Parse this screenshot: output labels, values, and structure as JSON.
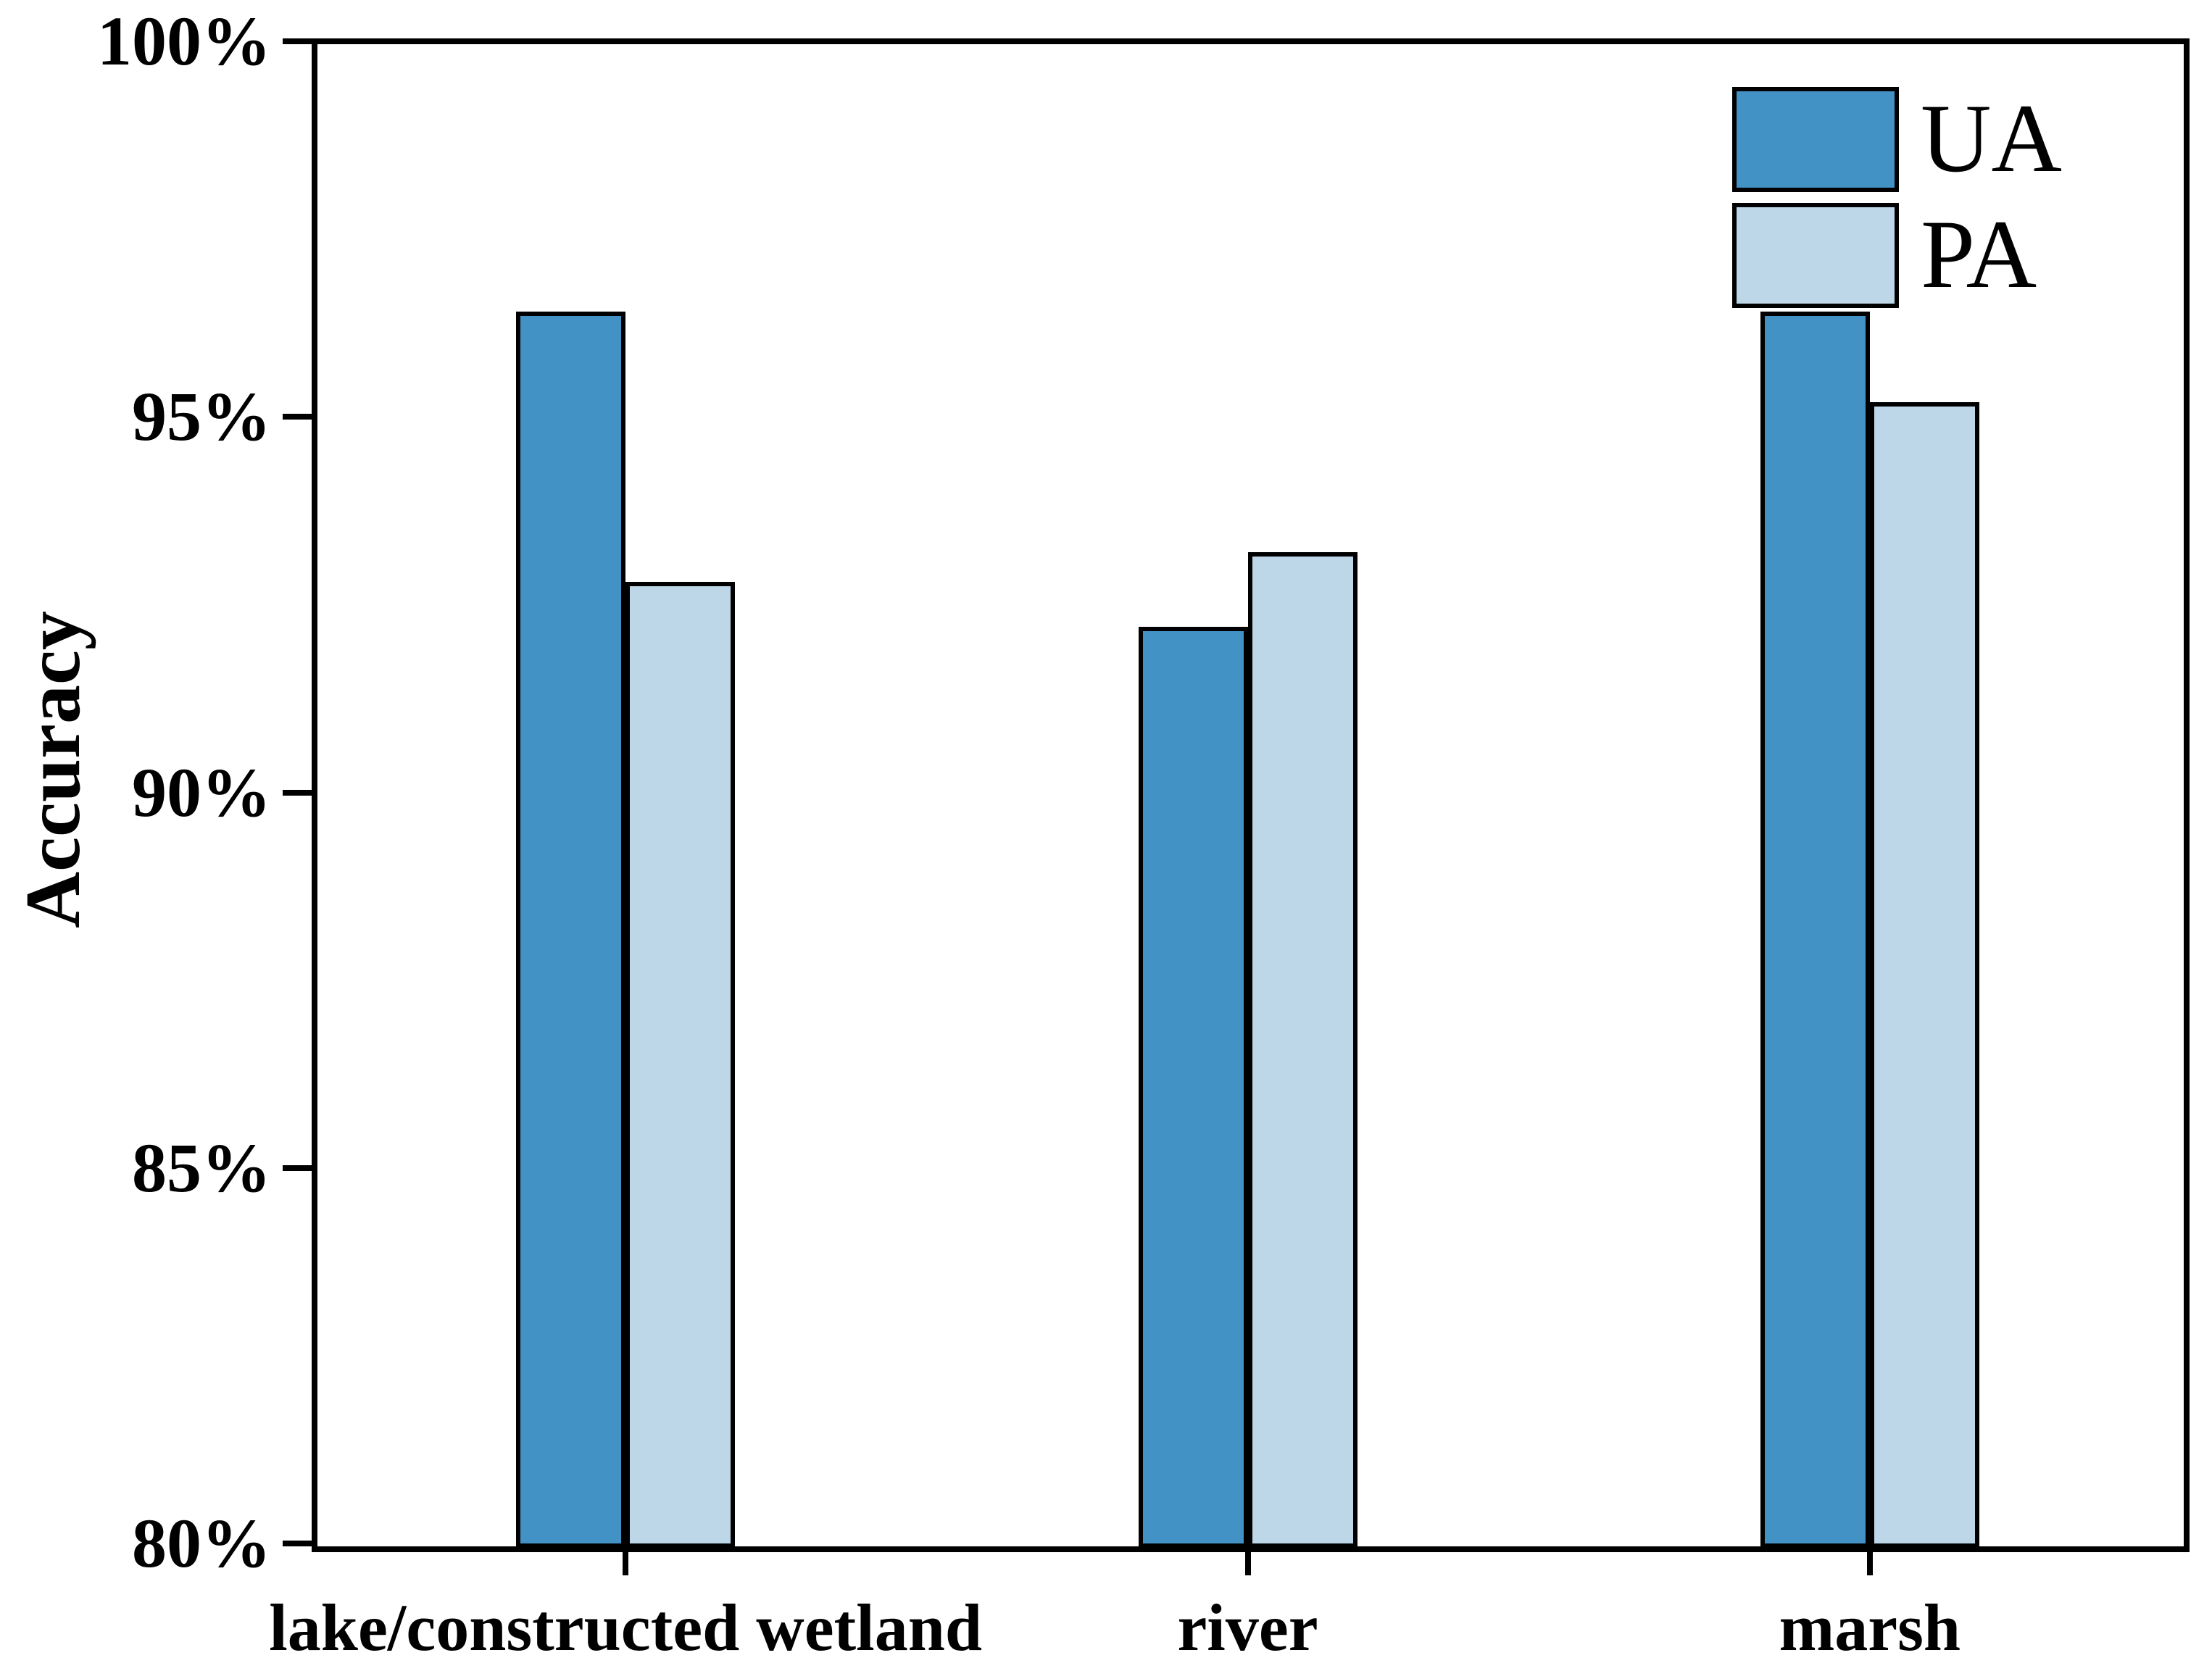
{
  "chart_data": {
    "type": "bar",
    "title": "",
    "categories": [
      "lake/constructed wetland",
      "river",
      "marsh"
    ],
    "series": [
      {
        "name": "UA",
        "color": "#4292C6",
        "values": [
          96.4,
          92.2,
          96.4
        ]
      },
      {
        "name": "PA",
        "color": "#BDD7E8",
        "values": [
          92.8,
          93.2,
          95.2
        ]
      }
    ],
    "xlabel": "",
    "ylabel": "Accuracy",
    "ylim": [
      80,
      100
    ],
    "ytick_values": [
      80,
      85,
      90,
      95,
      100
    ],
    "ytick_labels": [
      "80%",
      "85%",
      "90%",
      "95%",
      "100%"
    ],
    "value_unit": "%",
    "legend": {
      "position": "top-right",
      "entries": [
        "UA",
        "PA"
      ]
    },
    "grid": false,
    "bar_outline_color": "#000000",
    "axis_color": "#000000"
  }
}
